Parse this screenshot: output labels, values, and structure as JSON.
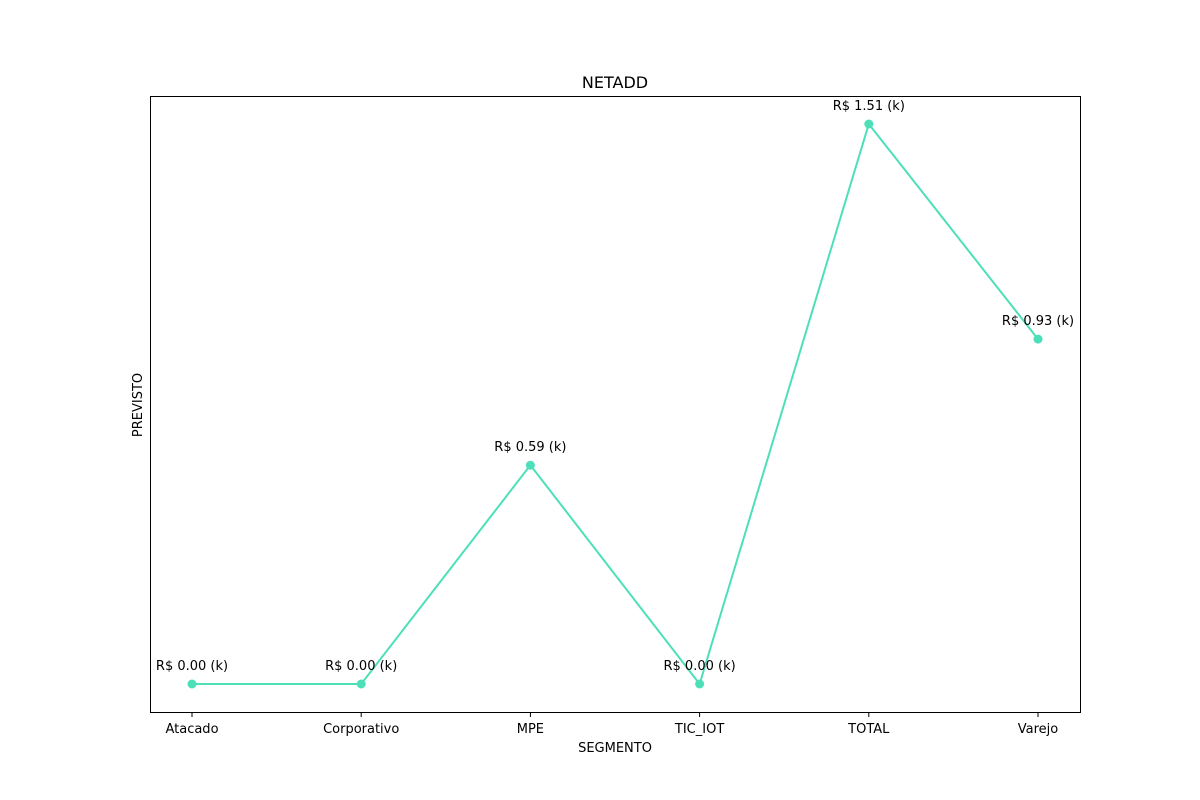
{
  "chart_data": {
    "type": "line",
    "title": "NETADD",
    "xlabel": "SEGMENTO",
    "ylabel": "PREVISTO",
    "categories": [
      "Atacado",
      "Corporativo",
      "MPE",
      "TIC_IOT",
      "TOTAL",
      "Varejo"
    ],
    "values": [
      0.0,
      0.0,
      0.59,
      0.0,
      1.51,
      0.93
    ],
    "point_labels": [
      "R$ 0.00 (k)",
      "R$ 0.00 (k)",
      "R$ 0.59 (k)",
      "R$ 0.00 (k)",
      "R$ 1.51 (k)",
      "R$ 0.93 (k)"
    ],
    "ylim": [
      -0.0755,
      1.5855
    ],
    "y_ticks_visible": false,
    "grid": false,
    "series_color": "#4de0b8"
  }
}
